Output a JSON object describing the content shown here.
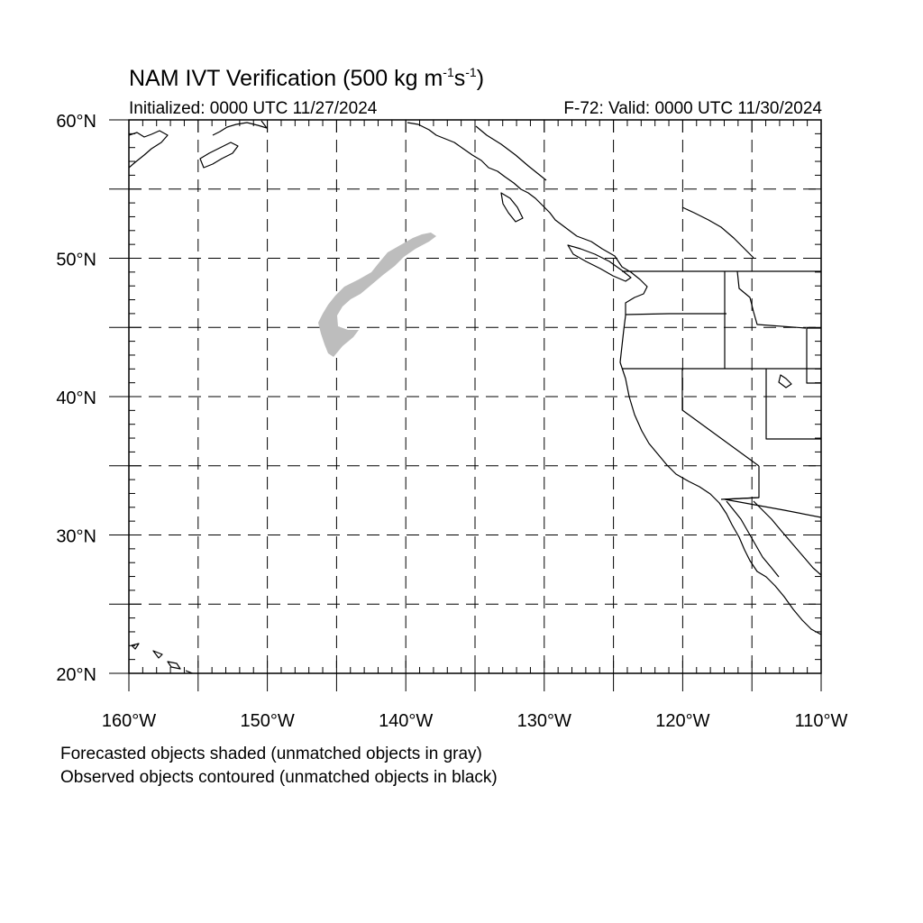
{
  "header": {
    "title_main": "NAM IVT Verification (500 kg m",
    "title_exp1": "-1",
    "title_mid": "s",
    "title_exp2": "-1",
    "title_end": ")",
    "initialized": "Initialized: 0000 UTC 11/27/2024",
    "valid": "F-72: Valid: 0000 UTC 11/30/2024"
  },
  "footer": {
    "line1": "Forecasted objects shaded (unmatched objects in gray)",
    "line2": "Observed objects contoured (unmatched objects in black)"
  },
  "map": {
    "lon_range": [
      -160,
      -110
    ],
    "lat_range": [
      20,
      60
    ],
    "grid_lon_step": 5,
    "grid_lat_step": 5,
    "lon_labels": [
      "160°W",
      "150°W",
      "140°W",
      "130°W",
      "120°W",
      "110°W"
    ],
    "lat_labels": [
      "20°N",
      "30°N",
      "40°N",
      "50°N",
      "60°N"
    ],
    "grid": "dashed",
    "forecast_object_color": "#bdbdbd",
    "outline_color": "#000000"
  }
}
